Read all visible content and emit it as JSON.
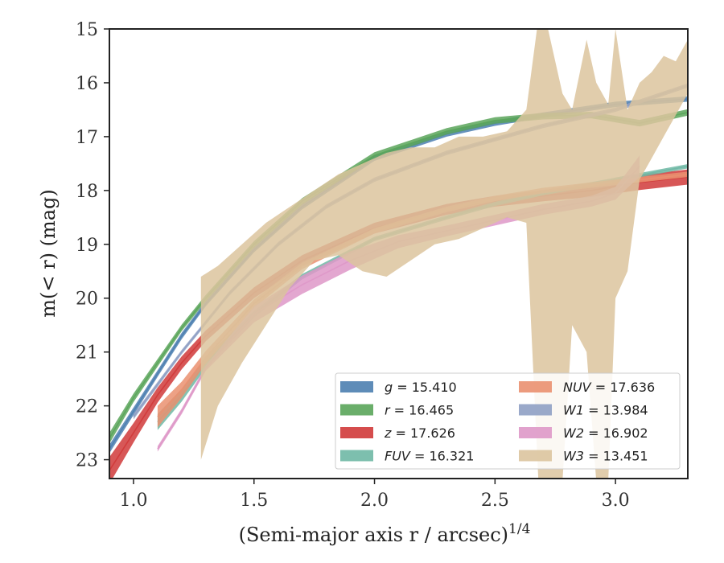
{
  "chart_data": {
    "type": "area",
    "xlabel": "(Semi-major axis r / arcsec)",
    "xlabel_exponent": "1/4",
    "ylabel": "m(< r) (mag)",
    "xlim": [
      0.9,
      3.3
    ],
    "ylim": [
      23.35,
      15.0
    ],
    "y_inverted": true,
    "xticks": [
      1.0,
      1.5,
      2.0,
      2.5,
      3.0
    ],
    "xtick_labels": [
      "1.0",
      "1.5",
      "2.0",
      "2.5",
      "3.0"
    ],
    "yticks": [
      15,
      16,
      17,
      18,
      19,
      20,
      21,
      22,
      23
    ],
    "ytick_labels": [
      "15",
      "16",
      "17",
      "18",
      "19",
      "20",
      "21",
      "22",
      "23"
    ],
    "grid": false,
    "legend_position": "lower-right",
    "legend_columns": 2,
    "series": [
      {
        "name": "g",
        "legend_value": "15.410",
        "legend_label": "g = 15.410",
        "color": "#4c7fb0",
        "x": [
          0.9,
          1.0,
          1.1,
          1.2,
          1.3,
          1.5,
          1.7,
          2.0,
          2.3,
          2.5,
          2.7,
          3.0,
          3.3
        ],
        "y": [
          22.8,
          22.1,
          21.4,
          20.7,
          20.1,
          19.1,
          18.3,
          17.4,
          16.95,
          16.75,
          16.6,
          16.4,
          16.3
        ],
        "dy": [
          0.08,
          0.07,
          0.06,
          0.06,
          0.05,
          0.05,
          0.05,
          0.05,
          0.05,
          0.05,
          0.05,
          0.05,
          0.05
        ]
      },
      {
        "name": "r",
        "legend_value": "16.465",
        "legend_label": "r = 16.465",
        "color": "#5aa55a",
        "x": [
          0.9,
          1.0,
          1.1,
          1.2,
          1.3,
          1.5,
          1.7,
          2.0,
          2.3,
          2.5,
          2.7,
          2.9,
          3.1,
          3.3
        ],
        "y": [
          22.6,
          21.85,
          21.2,
          20.55,
          20.0,
          19.0,
          18.2,
          17.35,
          16.9,
          16.7,
          16.62,
          16.6,
          16.75,
          16.55
        ],
        "dy": [
          0.1,
          0.08,
          0.07,
          0.06,
          0.06,
          0.06,
          0.06,
          0.06,
          0.06,
          0.06,
          0.06,
          0.06,
          0.06,
          0.06
        ]
      },
      {
        "name": "z",
        "legend_value": "17.626",
        "legend_label": "z = 17.626",
        "color": "#d03a3a",
        "x": [
          0.9,
          1.0,
          1.1,
          1.2,
          1.3,
          1.5,
          1.7,
          2.0,
          2.3,
          2.5,
          2.7,
          2.9,
          3.1,
          3.3
        ],
        "y": [
          23.2,
          22.5,
          21.8,
          21.2,
          20.7,
          19.9,
          19.3,
          18.7,
          18.35,
          18.2,
          18.1,
          18.0,
          17.85,
          17.75
        ],
        "dy": [
          0.25,
          0.18,
          0.14,
          0.12,
          0.1,
          0.1,
          0.1,
          0.1,
          0.1,
          0.1,
          0.1,
          0.12,
          0.14,
          0.14
        ]
      },
      {
        "name": "FUV",
        "legend_value": "16.321",
        "legend_label": "FUV = 16.321",
        "color": "#6fb8a5",
        "x": [
          1.1,
          1.2,
          1.3,
          1.5,
          1.7,
          2.0,
          2.3,
          2.5,
          2.7,
          3.0,
          3.3
        ],
        "y": [
          22.3,
          21.8,
          21.2,
          20.3,
          19.6,
          18.9,
          18.5,
          18.25,
          18.05,
          17.8,
          17.55
        ],
        "dy": [
          0.15,
          0.12,
          0.1,
          0.06,
          0.05,
          0.04,
          0.04,
          0.04,
          0.04,
          0.04,
          0.04
        ]
      },
      {
        "name": "NUV",
        "legend_value": "17.636",
        "legend_label": "NUV = 17.636",
        "color": "#ea9070",
        "x": [
          1.1,
          1.2,
          1.3,
          1.5,
          1.7,
          2.0,
          2.3,
          2.5,
          2.7,
          3.0,
          3.3
        ],
        "y": [
          22.2,
          21.7,
          21.1,
          20.1,
          19.4,
          18.75,
          18.35,
          18.15,
          18.0,
          17.85,
          17.7
        ],
        "dy": [
          0.2,
          0.15,
          0.12,
          0.08,
          0.06,
          0.05,
          0.05,
          0.05,
          0.05,
          0.05,
          0.05
        ]
      },
      {
        "name": "W1",
        "legend_value": "13.984",
        "legend_label": "W1 = 13.984",
        "color": "#8fa0c4",
        "x": [
          1.0,
          1.2,
          1.4,
          1.6,
          1.8,
          2.0,
          2.3,
          2.5,
          2.7,
          3.0,
          3.3
        ],
        "y": [
          22.2,
          21.0,
          19.9,
          19.0,
          18.3,
          17.8,
          17.3,
          17.05,
          16.8,
          16.5,
          16.05
        ],
        "dy": [
          0.05,
          0.04,
          0.04,
          0.04,
          0.04,
          0.04,
          0.04,
          0.04,
          0.04,
          0.04,
          0.04
        ]
      },
      {
        "name": "W2",
        "legend_value": "16.902",
        "legend_label": "W2 = 16.902",
        "color": "#de98c8",
        "x": [
          1.1,
          1.2,
          1.3,
          1.5,
          1.7,
          1.9,
          2.1,
          2.3,
          2.5,
          2.7,
          2.9,
          3.0,
          3.05,
          3.1
        ],
        "y": [
          22.8,
          22.1,
          21.3,
          20.3,
          19.75,
          19.3,
          18.95,
          18.75,
          18.55,
          18.35,
          18.2,
          18.05,
          17.8,
          17.55
        ],
        "dy": [
          0.05,
          0.05,
          0.05,
          0.15,
          0.17,
          0.17,
          0.12,
          0.1,
          0.1,
          0.1,
          0.1,
          0.12,
          0.15,
          0.2
        ]
      },
      {
        "name": "W3",
        "legend_value": "13.451",
        "legend_label": "W3 = 13.451",
        "color": "#dcc49e",
        "x": [
          1.28,
          1.35,
          1.45,
          1.55,
          1.65,
          1.75,
          1.85,
          1.95,
          2.05,
          2.15,
          2.25,
          2.35,
          2.45,
          2.55,
          2.63,
          2.68,
          2.72,
          2.78,
          2.82,
          2.88,
          2.92,
          2.97,
          3.0,
          3.05,
          3.1,
          3.15,
          3.2,
          3.25,
          3.3
        ],
        "y_top": [
          19.6,
          19.4,
          19.0,
          18.6,
          18.3,
          18.0,
          17.7,
          17.5,
          17.3,
          17.2,
          17.2,
          17.0,
          17.0,
          16.9,
          16.5,
          14.8,
          15.0,
          16.2,
          16.5,
          15.2,
          16.0,
          16.4,
          15.0,
          16.5,
          16.0,
          15.8,
          15.5,
          15.6,
          15.2
        ],
        "y_bottom": [
          23.0,
          22.0,
          21.2,
          20.5,
          19.8,
          19.3,
          19.2,
          19.5,
          19.6,
          19.3,
          19.0,
          18.9,
          18.7,
          18.5,
          18.6,
          23.4,
          23.4,
          23.4,
          20.5,
          21.0,
          23.4,
          23.4,
          20.0,
          19.5,
          17.8,
          17.4,
          17.0,
          16.6,
          16.2
        ]
      }
    ]
  }
}
